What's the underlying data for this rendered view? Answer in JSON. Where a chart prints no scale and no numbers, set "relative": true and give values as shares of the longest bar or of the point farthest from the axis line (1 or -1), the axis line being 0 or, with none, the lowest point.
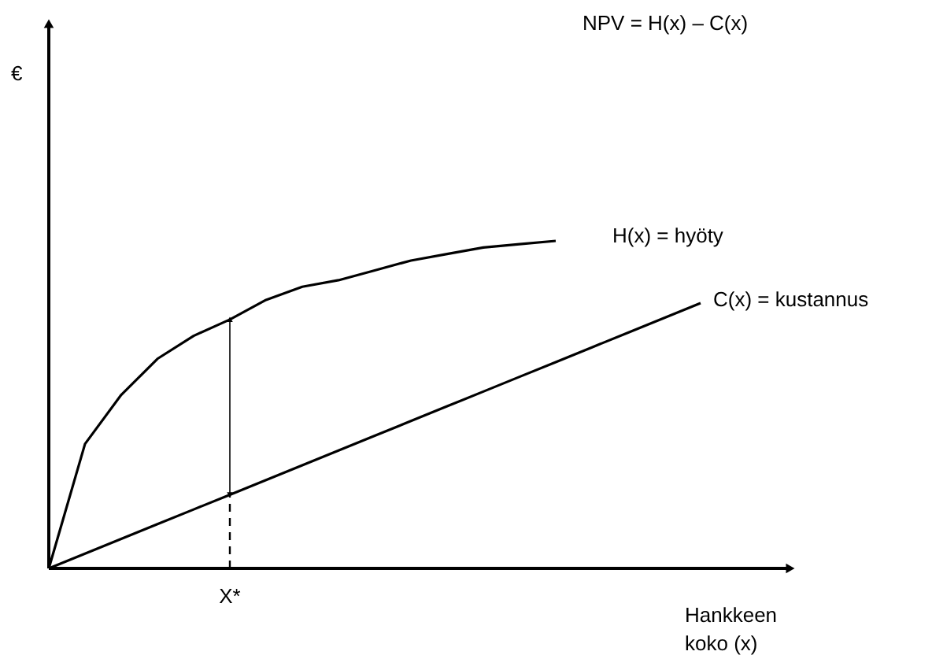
{
  "chart_data": {
    "type": "line",
    "relative": true,
    "marker": "none",
    "line_style": "solid",
    "xlabel": "Hankkeen koko (x)",
    "categories": [
      null,
      null,
      null,
      null,
      null,
      null,
      null,
      null,
      null,
      null,
      null,
      null,
      null,
      null,
      null,
      null,
      null,
      null,
      null
    ],
    "series": [
      {
        "name": "H(x) = hyöty",
        "color": "#000000",
        "values": [
          0,
          0.38,
          0.53,
          0.64,
          0.71,
          0.76,
          0.82,
          0.86,
          0.88,
          0.91,
          0.94,
          0.96,
          0.98,
          0.99,
          1,
          null,
          null,
          null,
          null
        ]
      },
      {
        "name": "C(x) = kustannus",
        "color": "#000000",
        "values": [
          0,
          0.045,
          0.09,
          0.135,
          0.18,
          0.225,
          0.27,
          0.315,
          0.36,
          0.405,
          0.45,
          0.495,
          0.54,
          0.585,
          0.63,
          0.675,
          0.72,
          0.765,
          0.81
        ]
      }
    ],
    "annotations": [
      "NPV = H(x) – C(x)",
      "€",
      {
        "text": "X*",
        "y": 0.225
      }
    ]
  }
}
